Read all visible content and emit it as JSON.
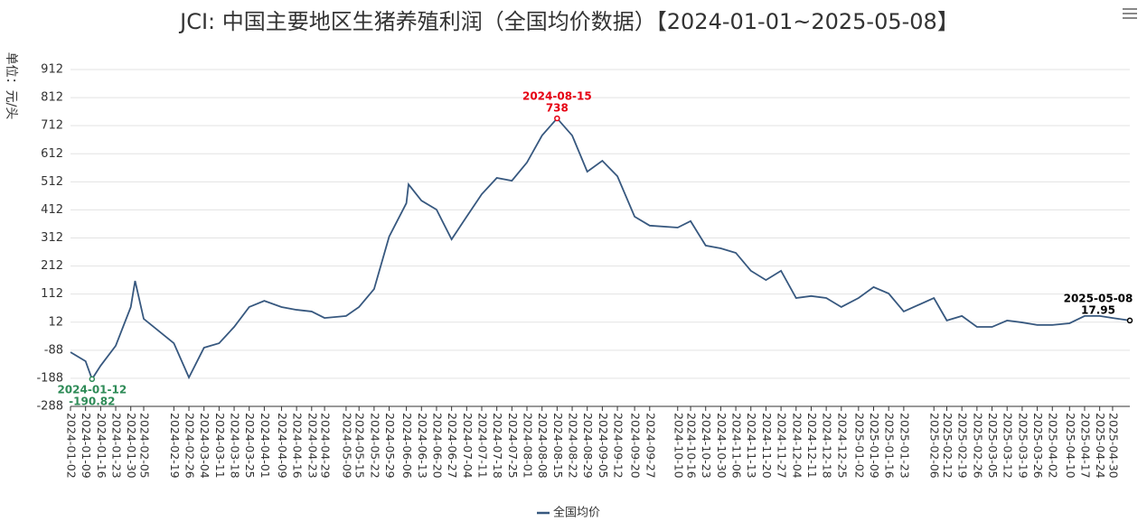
{
  "chart_data": {
    "type": "line",
    "title": "JCI: 中国主要地区生猪养殖利润（全国均价数据）【2024-01-01~2025-05-08】",
    "y_label": "单位：元/头",
    "x": [
      "2024-01-02",
      "2024-01-09",
      "2024-01-12",
      "2024-01-16",
      "2024-01-23",
      "2024-01-30",
      "2024-02-01",
      "2024-02-05",
      "2024-02-19",
      "2024-02-26",
      "2024-03-04",
      "2024-03-11",
      "2024-03-18",
      "2024-03-25",
      "2024-04-01",
      "2024-04-09",
      "2024-04-16",
      "2024-04-23",
      "2024-04-29",
      "2024-05-09",
      "2024-05-15",
      "2024-05-22",
      "2024-05-29",
      "2024-06-06",
      "2024-06-07",
      "2024-06-13",
      "2024-06-20",
      "2024-06-27",
      "2024-07-04",
      "2024-07-11",
      "2024-07-18",
      "2024-07-25",
      "2024-08-01",
      "2024-08-08",
      "2024-08-15",
      "2024-08-22",
      "2024-08-29",
      "2024-09-05",
      "2024-09-12",
      "2024-09-20",
      "2024-09-27",
      "2024-10-10",
      "2024-10-16",
      "2024-10-23",
      "2024-10-30",
      "2024-11-06",
      "2024-11-13",
      "2024-11-20",
      "2024-11-27",
      "2024-12-04",
      "2024-12-11",
      "2024-12-18",
      "2024-12-25",
      "2025-01-02",
      "2025-01-09",
      "2025-01-16",
      "2025-01-23",
      "2025-02-06",
      "2025-02-12",
      "2025-02-19",
      "2025-02-26",
      "2025-03-05",
      "2025-03-12",
      "2025-03-19",
      "2025-03-26",
      "2025-04-02",
      "2025-04-10",
      "2025-04-17",
      "2025-04-24",
      "2025-04-30",
      "2025-05-08"
    ],
    "series": [
      {
        "name": "全国均价",
        "color": "#37587f",
        "values": [
          -95,
          -127,
          -190.82,
          -143,
          -72,
          66,
          159,
          24,
          -63,
          -185,
          -79,
          -63,
          -5,
          66,
          88,
          66,
          56,
          50,
          27,
          34,
          66,
          130,
          317,
          436,
          503,
          445,
          413,
          307,
          388,
          468,
          526,
          516,
          581,
          677,
          738,
          677,
          548,
          587,
          532,
          388,
          356,
          349,
          372,
          285,
          275,
          259,
          195,
          162,
          195,
          98,
          105,
          98,
          66,
          98,
          137,
          114,
          50,
          98,
          18,
          34,
          -5,
          -5,
          18,
          11,
          2,
          2,
          8,
          34,
          34,
          27,
          17.95
        ]
      }
    ],
    "xlim": [
      "2024-01-02",
      "2025-05-08"
    ],
    "xticks": [
      "2024-01-02",
      "2024-01-09",
      "2024-01-16",
      "2024-01-23",
      "2024-01-30",
      "2024-02-05",
      "2024-02-19",
      "2024-02-26",
      "2024-03-04",
      "2024-03-11",
      "2024-03-18",
      "2024-03-25",
      "2024-04-01",
      "2024-04-09",
      "2024-04-16",
      "2024-04-23",
      "2024-04-29",
      "2024-05-09",
      "2024-05-15",
      "2024-05-22",
      "2024-05-29",
      "2024-06-06",
      "2024-06-13",
      "2024-06-20",
      "2024-06-27",
      "2024-07-04",
      "2024-07-11",
      "2024-07-18",
      "2024-07-25",
      "2024-08-01",
      "2024-08-08",
      "2024-08-15",
      "2024-08-22",
      "2024-08-29",
      "2024-09-05",
      "2024-09-12",
      "2024-09-20",
      "2024-09-27",
      "2024-10-10",
      "2024-10-16",
      "2024-10-23",
      "2024-10-30",
      "2024-11-06",
      "2024-11-13",
      "2024-11-20",
      "2024-11-27",
      "2024-12-04",
      "2024-12-11",
      "2024-12-18",
      "2024-12-25",
      "2025-01-02",
      "2025-01-09",
      "2025-01-16",
      "2025-01-23",
      "2025-02-06",
      "2025-02-12",
      "2025-02-19",
      "2025-02-26",
      "2025-03-05",
      "2025-03-12",
      "2025-03-19",
      "2025-03-26",
      "2025-04-02",
      "2025-04-10",
      "2025-04-17",
      "2025-04-24",
      "2025-04-30"
    ],
    "ylim": [
      -288,
      912
    ],
    "yticks": [
      -288,
      -188,
      -88,
      12,
      112,
      212,
      312,
      412,
      512,
      612,
      712,
      812,
      912
    ],
    "grid": true,
    "legend": "bottom",
    "annotations": [
      {
        "x": "2024-01-12",
        "value": -190.82,
        "color": "#2e8b57",
        "position": "below"
      },
      {
        "x": "2024-08-15",
        "value": 738,
        "color": "#e60012",
        "position": "above"
      },
      {
        "x": "2025-05-08",
        "value": 17.95,
        "color": "#000000",
        "position": "above"
      }
    ]
  }
}
